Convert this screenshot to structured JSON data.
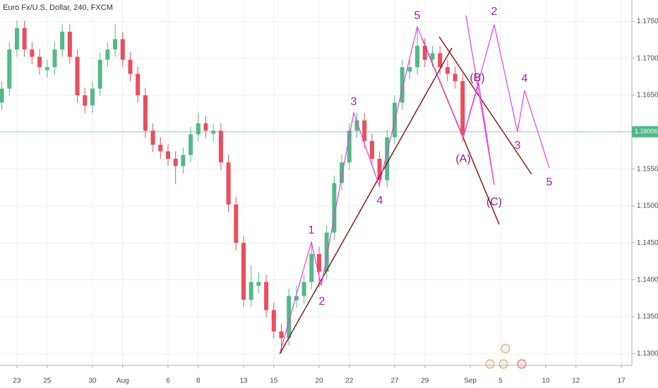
{
  "chart_data": {
    "type": "candlestick",
    "title": "Euro Fx/U.S. Dollar, 240, FXCM",
    "x": [
      -1,
      -0.5,
      0,
      0.5,
      1,
      1.5,
      2,
      2.5,
      3,
      3.5,
      4,
      4.5,
      5,
      5.5,
      6,
      6.5,
      7,
      7.5,
      8,
      8.5,
      9,
      9.5,
      10,
      10.5,
      11,
      11.5,
      12,
      12.5,
      13,
      13.5,
      14,
      14.5,
      15,
      15.5,
      16,
      16.5,
      17,
      17.5,
      18,
      18.5,
      19,
      19.5,
      20,
      20.5,
      21,
      21.5,
      22,
      22.5,
      23,
      23.5,
      24,
      24.5,
      25,
      25.5,
      26,
      26.5,
      27,
      27.5,
      28,
      28.5,
      29,
      29.5
    ],
    "open": [
      1.164,
      1.1659,
      1.1712,
      1.1741,
      1.1712,
      1.1702,
      1.1684,
      1.1688,
      1.1712,
      1.1736,
      1.1702,
      1.165,
      1.1636,
      1.1659,
      1.1698,
      1.1712,
      1.1726,
      1.1698,
      1.1679,
      1.165,
      1.1602,
      1.1583,
      1.1574,
      1.1564,
      1.1554,
      1.1569,
      1.1597,
      1.1612,
      1.1598,
      1.1602,
      1.1559,
      1.1502,
      1.145,
      1.1373,
      1.1392,
      1.1397,
      1.1359,
      1.133,
      1.1321,
      1.1372,
      1.1378,
      1.1397,
      1.1435,
      1.1411,
      1.1464,
      1.1531,
      1.1559,
      1.1602,
      1.1616,
      1.1588,
      1.1564,
      1.1535,
      1.1593,
      1.164,
      1.1682,
      1.1688,
      1.1717,
      1.1698,
      1.1707,
      1.1688,
      1.1679,
      1.1669
    ],
    "high": [
      1.1669,
      1.1722,
      1.1751,
      1.1751,
      1.1722,
      1.1712,
      1.1698,
      1.1722,
      1.1746,
      1.1746,
      1.1712,
      1.166,
      1.1669,
      1.1708,
      1.1722,
      1.1746,
      1.1736,
      1.1708,
      1.1689,
      1.166,
      1.1612,
      1.1593,
      1.1584,
      1.1574,
      1.1579,
      1.1607,
      1.1626,
      1.1622,
      1.1612,
      1.1612,
      1.1569,
      1.1512,
      1.146,
      1.142,
      1.141,
      1.1407,
      1.1369,
      1.134,
      1.1388,
      1.1392,
      1.1407,
      1.1452,
      1.1445,
      1.1474,
      1.1541,
      1.1569,
      1.1612,
      1.1626,
      1.1626,
      1.1598,
      1.1574,
      1.1603,
      1.165,
      1.1698,
      1.1698,
      1.1741,
      1.1727,
      1.1717,
      1.1717,
      1.1698,
      1.1689,
      1.1679
    ],
    "low": [
      1.163,
      1.1649,
      1.1702,
      1.1702,
      1.1692,
      1.1678,
      1.1674,
      1.1678,
      1.1702,
      1.1692,
      1.164,
      1.1626,
      1.1626,
      1.1649,
      1.1688,
      1.1702,
      1.1688,
      1.1669,
      1.164,
      1.1592,
      1.1573,
      1.1564,
      1.1554,
      1.153,
      1.1544,
      1.1559,
      1.1587,
      1.1592,
      1.1588,
      1.1549,
      1.1492,
      1.144,
      1.1363,
      1.1363,
      1.1382,
      1.1349,
      1.132,
      1.13,
      1.1311,
      1.1362,
      1.1368,
      1.1387,
      1.139,
      1.1401,
      1.1454,
      1.1521,
      1.1549,
      1.1592,
      1.1578,
      1.1554,
      1.1525,
      1.1525,
      1.1583,
      1.163,
      1.1672,
      1.1678,
      1.1688,
      1.1688,
      1.1678,
      1.1669,
      1.1659,
      1.1587
    ],
    "close": [
      1.1659,
      1.1712,
      1.1741,
      1.1712,
      1.1702,
      1.1688,
      1.1688,
      1.1712,
      1.1736,
      1.1702,
      1.165,
      1.1636,
      1.1659,
      1.1698,
      1.1712,
      1.1726,
      1.1698,
      1.1679,
      1.165,
      1.1602,
      1.1583,
      1.1574,
      1.1564,
      1.1554,
      1.1569,
      1.1597,
      1.1612,
      1.1602,
      1.1602,
      1.1559,
      1.1502,
      1.145,
      1.1373,
      1.1397,
      1.1397,
      1.1359,
      1.133,
      1.1321,
      1.1378,
      1.1378,
      1.1397,
      1.1435,
      1.1411,
      1.1464,
      1.1531,
      1.1559,
      1.1602,
      1.1616,
      1.1588,
      1.1564,
      1.1535,
      1.1593,
      1.164,
      1.1688,
      1.1688,
      1.1717,
      1.1698,
      1.1707,
      1.1688,
      1.1679,
      1.1669,
      1.1597
    ],
    "up_color": "#53b987",
    "down_color": "#eb4d5c",
    "last_price": 1.16006,
    "last_price_label": "1.16006",
    "last_price_color": "#53b987",
    "xlim": [
      -1.12,
      40.7
    ],
    "ylim": [
      1.1284,
      1.1779
    ],
    "grid": true,
    "xticks": [
      {
        "value": 0,
        "label": "23"
      },
      {
        "value": 2,
        "label": "25"
      },
      {
        "value": 5,
        "label": "30"
      },
      {
        "value": 7,
        "label": "Aug"
      },
      {
        "value": 10,
        "label": "6"
      },
      {
        "value": 12,
        "label": "8"
      },
      {
        "value": 15,
        "label": "13"
      },
      {
        "value": 17,
        "label": "15"
      },
      {
        "value": 20,
        "label": "20"
      },
      {
        "value": 22,
        "label": "22"
      },
      {
        "value": 25,
        "label": "27"
      },
      {
        "value": 27,
        "label": "29"
      },
      {
        "value": 30,
        "label": "Sep"
      },
      {
        "value": 32,
        "label": "5"
      },
      {
        "value": 35,
        "label": "10"
      },
      {
        "value": 37,
        "label": "12"
      },
      {
        "value": 40,
        "label": "17"
      }
    ],
    "yticks": [
      {
        "value": 1.175,
        "label": "1.17500"
      },
      {
        "value": 1.17,
        "label": "1.17000"
      },
      {
        "value": 1.165,
        "label": "1.16500"
      },
      {
        "value": 1.16,
        "label": "1.16000"
      },
      {
        "value": 1.155,
        "label": "1.15500"
      },
      {
        "value": 1.15,
        "label": "1.15000"
      },
      {
        "value": 1.145,
        "label": "1.14500"
      },
      {
        "value": 1.14,
        "label": "1.14000"
      },
      {
        "value": 1.135,
        "label": "1.13500"
      },
      {
        "value": 1.13,
        "label": "1.13000"
      }
    ],
    "annotations": [
      "1",
      "2",
      "3",
      "4",
      "5",
      "(A)",
      "(B)",
      "(C)",
      "2",
      "3",
      "4",
      "5"
    ]
  }
}
